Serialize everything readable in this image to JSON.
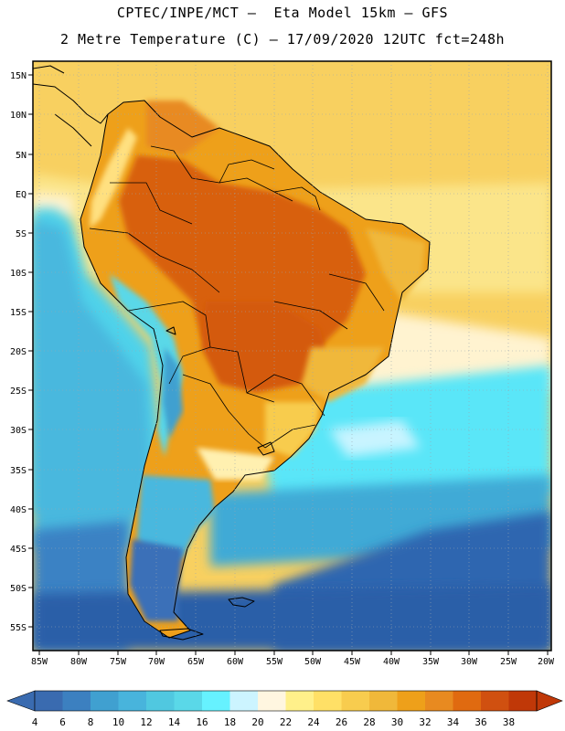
{
  "header": {
    "line1": "CPTEC/INPE/MCT –  Eta Model 15km – GFS",
    "line2": "2 Metre Temperature (C) – 17/09/2020 12UTC fct=248h"
  },
  "axes": {
    "lat_labels": [
      "15N",
      "10N",
      "5N",
      "EQ",
      "5S",
      "10S",
      "15S",
      "20S",
      "25S",
      "30S",
      "35S",
      "40S",
      "45S",
      "50S",
      "55S"
    ],
    "lon_labels": [
      "85W",
      "80W",
      "75W",
      "70W",
      "65W",
      "60W",
      "55W",
      "50W",
      "45W",
      "40W",
      "35W",
      "30W",
      "25W",
      "20W"
    ],
    "lat_values": [
      15,
      10,
      5,
      0,
      -5,
      -10,
      -15,
      -20,
      -25,
      -30,
      -35,
      -40,
      -45,
      -50,
      -55
    ],
    "lon_values": [
      -85,
      -80,
      -75,
      -70,
      -65,
      -60,
      -55,
      -50,
      -45,
      -40,
      -35,
      -30,
      -25,
      -20
    ],
    "lat_range": [
      -58,
      15.8
    ],
    "lon_range": [
      -85.5,
      -20
    ]
  },
  "colorbar": {
    "labels": [
      "4",
      "6",
      "8",
      "10",
      "12",
      "14",
      "16",
      "18",
      "20",
      "22",
      "24",
      "26",
      "28",
      "30",
      "32",
      "34",
      "36",
      "38"
    ],
    "colors": [
      "#3a6bb0",
      "#3c80c0",
      "#40a0d0",
      "#48b4dc",
      "#50c8e0",
      "#5ad8e8",
      "#66f2ff",
      "#ccf4ff",
      "#fff6e0",
      "#fff08a",
      "#ffe066",
      "#f8cc4e",
      "#f0b83a",
      "#eea01a",
      "#e88a20",
      "#e06a10",
      "#d05010",
      "#c03808"
    ],
    "under_color": "#3a6bb0",
    "over_color": "#c03808"
  },
  "colors": {
    "ocean_south": "#2a5fa8",
    "ocean_mid": "#48c4e0",
    "ocean_cyan": "#5ae6f8",
    "ocean_warm": "#f8d060",
    "land_hot": "#d8600e",
    "land_warm": "#eea01a",
    "border": "#000000"
  }
}
